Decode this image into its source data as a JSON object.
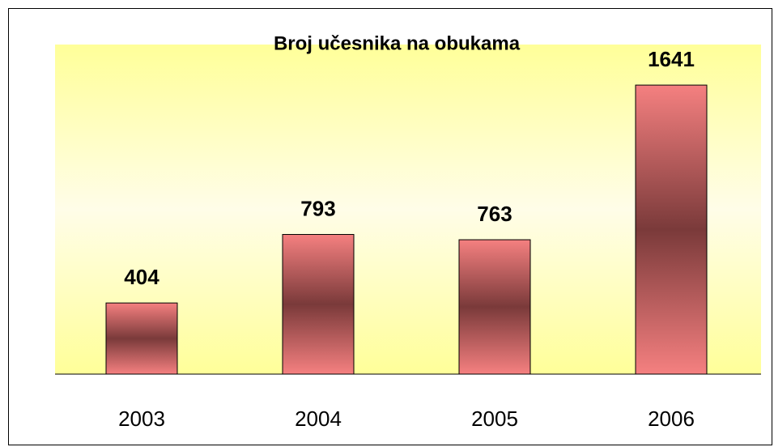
{
  "chart_data": {
    "type": "bar",
    "title": "Broj učesnika na obukama",
    "categories": [
      "2003",
      "2004",
      "2005",
      "2006"
    ],
    "values": [
      404,
      793,
      763,
      1641
    ],
    "color": "#f58080"
  }
}
